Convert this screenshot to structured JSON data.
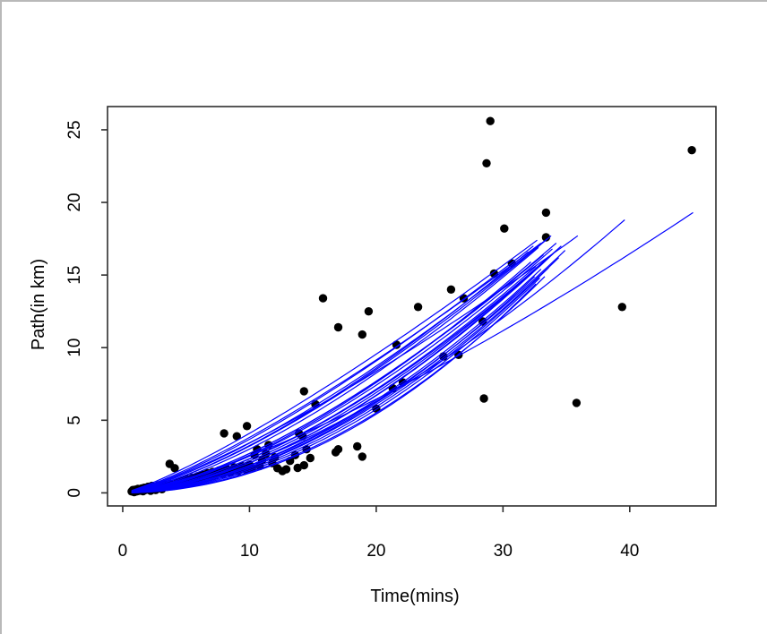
{
  "window": {
    "background": "#ffffff",
    "frame_border_color": "#b9b9b9"
  },
  "chart_data": {
    "type": "scatter",
    "title": "",
    "xlabel": "Time(mins)",
    "ylabel": "Path(in km)",
    "xlim": [
      -1.2,
      46.8
    ],
    "ylim": [
      -0.9,
      26.6
    ],
    "x_ticks": [
      0,
      10,
      20,
      30,
      40
    ],
    "y_ticks": [
      0,
      5,
      10,
      15,
      20,
      25
    ],
    "grid": false,
    "legend": null,
    "styles": {
      "point_color": "#000000",
      "curve_color": "#0000ff",
      "axis_color": "#2e2e2e",
      "label_color": "#000000",
      "point_radius": 4.7,
      "curve_width": 1.2
    },
    "points": [
      [
        0.7,
        0.1
      ],
      [
        0.8,
        0.2
      ],
      [
        0.9,
        0.05
      ],
      [
        1.0,
        0.22
      ],
      [
        1.1,
        0.1
      ],
      [
        1.2,
        0.28
      ],
      [
        1.3,
        0.15
      ],
      [
        1.5,
        0.3
      ],
      [
        1.6,
        0.12
      ],
      [
        1.7,
        0.35
      ],
      [
        1.8,
        0.2
      ],
      [
        2.0,
        0.42
      ],
      [
        2.1,
        0.25
      ],
      [
        2.2,
        0.15
      ],
      [
        2.3,
        0.48
      ],
      [
        2.5,
        0.3
      ],
      [
        2.6,
        0.2
      ],
      [
        2.8,
        0.52
      ],
      [
        3.0,
        0.35
      ],
      [
        3.1,
        0.25
      ],
      [
        3.3,
        0.58
      ],
      [
        3.5,
        0.42
      ],
      [
        3.7,
        2.0
      ],
      [
        3.8,
        0.6
      ],
      [
        4.0,
        0.48
      ],
      [
        4.1,
        1.7
      ],
      [
        4.3,
        0.72
      ],
      [
        4.5,
        0.55
      ],
      [
        4.7,
        0.85
      ],
      [
        4.9,
        0.65
      ],
      [
        5.1,
        0.95
      ],
      [
        5.3,
        0.75
      ],
      [
        5.5,
        1.05
      ],
      [
        5.7,
        0.85
      ],
      [
        5.9,
        1.15
      ],
      [
        6.1,
        0.9
      ],
      [
        6.3,
        1.25
      ],
      [
        6.5,
        1.0
      ],
      [
        6.7,
        1.35
      ],
      [
        6.9,
        1.1
      ],
      [
        7.1,
        1.45
      ],
      [
        7.3,
        1.2
      ],
      [
        7.6,
        1.55
      ],
      [
        7.9,
        1.3
      ],
      [
        8.0,
        4.1
      ],
      [
        8.2,
        1.65
      ],
      [
        8.5,
        1.4
      ],
      [
        8.8,
        1.75
      ],
      [
        9.0,
        3.9
      ],
      [
        9.1,
        1.5
      ],
      [
        9.4,
        1.85
      ],
      [
        9.7,
        1.6
      ],
      [
        9.8,
        4.6
      ],
      [
        10.0,
        1.95
      ],
      [
        10.2,
        1.7
      ],
      [
        10.4,
        2.6
      ],
      [
        10.6,
        3.0
      ],
      [
        10.8,
        1.85
      ],
      [
        11.0,
        2.25
      ],
      [
        11.3,
        2.7
      ],
      [
        11.5,
        3.3
      ],
      [
        11.8,
        2.05
      ],
      [
        12.0,
        2.45
      ],
      [
        12.2,
        1.7
      ],
      [
        12.6,
        1.5
      ],
      [
        12.9,
        1.62
      ],
      [
        13.2,
        2.2
      ],
      [
        13.6,
        2.6
      ],
      [
        13.8,
        1.72
      ],
      [
        13.9,
        4.1
      ],
      [
        14.2,
        3.9
      ],
      [
        14.5,
        3.0
      ],
      [
        14.3,
        1.9
      ],
      [
        14.8,
        2.4
      ],
      [
        14.3,
        7.0
      ],
      [
        15.2,
        6.1
      ],
      [
        16.8,
        2.8
      ],
      [
        17.0,
        3.0
      ],
      [
        18.5,
        3.2
      ],
      [
        18.9,
        2.5
      ],
      [
        20.0,
        5.8
      ],
      [
        21.3,
        7.2
      ],
      [
        22.1,
        7.6
      ],
      [
        15.8,
        13.4
      ],
      [
        17.0,
        11.4
      ],
      [
        18.9,
        10.9
      ],
      [
        19.4,
        12.5
      ],
      [
        21.6,
        10.2
      ],
      [
        23.3,
        12.8
      ],
      [
        25.3,
        9.4
      ],
      [
        26.5,
        9.5
      ],
      [
        25.9,
        14.0
      ],
      [
        26.9,
        13.4
      ],
      [
        28.4,
        11.8
      ],
      [
        28.5,
        6.5
      ],
      [
        29.0,
        25.6
      ],
      [
        28.7,
        22.7
      ],
      [
        29.3,
        15.1
      ],
      [
        30.1,
        18.2
      ],
      [
        30.7,
        15.8
      ],
      [
        33.4,
        19.3
      ],
      [
        33.4,
        17.6
      ],
      [
        35.8,
        6.2
      ],
      [
        39.4,
        12.8
      ],
      [
        44.9,
        23.6
      ]
    ],
    "fit_curves": {
      "model": "power: y = (yT / T^b) * t^b, each curve drawn for t in [0.7, T]",
      "params": [
        [
          1.22,
          32.7,
          17.4
        ],
        [
          1.26,
          33.0,
          17.2
        ],
        [
          1.3,
          32.4,
          17.0
        ],
        [
          1.35,
          33.5,
          17.5
        ],
        [
          1.4,
          32.0,
          16.6
        ],
        [
          1.4,
          33.8,
          17.7
        ],
        [
          1.45,
          32.8,
          16.9
        ],
        [
          1.5,
          33.2,
          16.4
        ],
        [
          1.5,
          34.2,
          17.2
        ],
        [
          1.55,
          32.2,
          15.9
        ],
        [
          1.55,
          33.9,
          16.8
        ],
        [
          1.6,
          32.6,
          15.6
        ],
        [
          1.6,
          34.6,
          17.0
        ],
        [
          1.65,
          33.4,
          16.1
        ],
        [
          1.7,
          32.3,
          15.2
        ],
        [
          1.7,
          34.0,
          16.5
        ],
        [
          1.75,
          33.0,
          15.4
        ],
        [
          1.75,
          34.9,
          16.7
        ],
        [
          1.8,
          32.5,
          14.9
        ],
        [
          1.8,
          34.4,
          16.2
        ],
        [
          1.85,
          33.6,
          15.5
        ],
        [
          1.9,
          32.9,
          14.8
        ],
        [
          1.95,
          33.3,
          14.9
        ],
        [
          2.0,
          32.6,
          14.4
        ],
        [
          1.28,
          35.9,
          17.7
        ],
        [
          1.6,
          39.6,
          18.8
        ],
        [
          1.35,
          45.0,
          19.3
        ]
      ]
    }
  }
}
